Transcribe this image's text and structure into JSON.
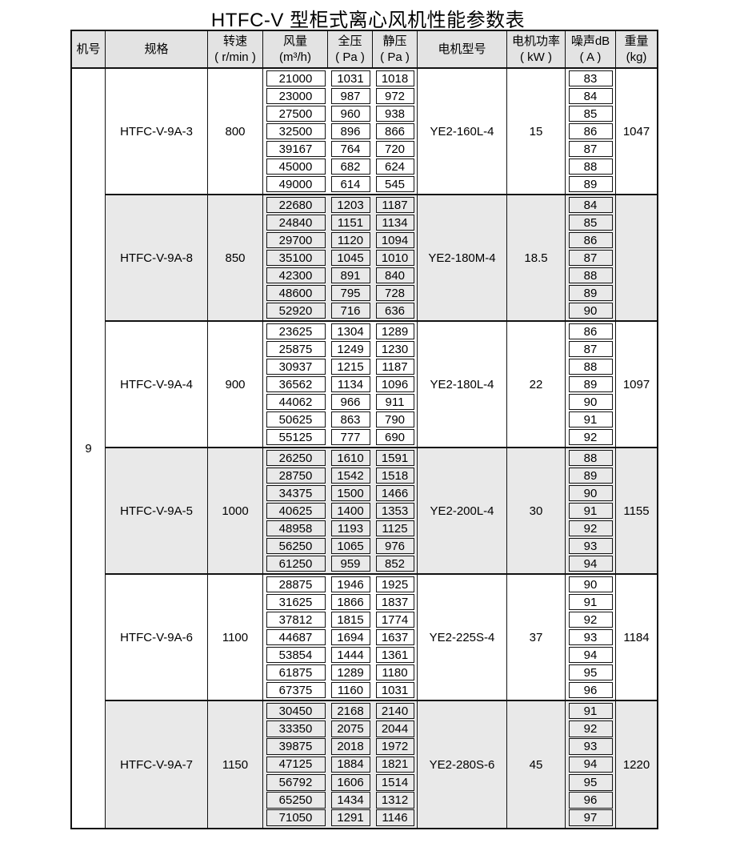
{
  "title": "HTFC-V 型柜式离心风机性能参数表",
  "colors": {
    "border": "#121212",
    "header_bg": "#e3e3e3",
    "shaded_row_bg": "#e9e9e9",
    "text": "#000000"
  },
  "table": {
    "machine_no": "9",
    "columns": [
      {
        "key": "machine_no",
        "label": "机号",
        "unit": ""
      },
      {
        "key": "spec",
        "label": "规格",
        "unit": ""
      },
      {
        "key": "speed",
        "label": "转速",
        "unit": "( r/min )"
      },
      {
        "key": "airflow",
        "label": "风量",
        "unit": "(m³/h)"
      },
      {
        "key": "total_pressure",
        "label": "全压",
        "unit": "( Pa )"
      },
      {
        "key": "static_pressure",
        "label": "静压",
        "unit": "( Pa )"
      },
      {
        "key": "motor_model",
        "label": "电机型号",
        "unit": ""
      },
      {
        "key": "motor_power",
        "label": "电机功率",
        "unit": "( kW )"
      },
      {
        "key": "noise",
        "label": "噪声dB",
        "unit": "( A )"
      },
      {
        "key": "weight",
        "label": "重量",
        "unit": "(kg)"
      }
    ],
    "groups": [
      {
        "spec": "HTFC-V-9A-3",
        "speed": "800",
        "motor_model": "YE2-160L-4",
        "motor_power": "15",
        "weight": "1047",
        "shaded": false,
        "rows": [
          {
            "airflow": "21000",
            "total_pressure": "1031",
            "static_pressure": "1018",
            "noise": "83"
          },
          {
            "airflow": "23000",
            "total_pressure": "987",
            "static_pressure": "972",
            "noise": "84"
          },
          {
            "airflow": "27500",
            "total_pressure": "960",
            "static_pressure": "938",
            "noise": "85"
          },
          {
            "airflow": "32500",
            "total_pressure": "896",
            "static_pressure": "866",
            "noise": "86"
          },
          {
            "airflow": "39167",
            "total_pressure": "764",
            "static_pressure": "720",
            "noise": "87"
          },
          {
            "airflow": "45000",
            "total_pressure": "682",
            "static_pressure": "624",
            "noise": "88"
          },
          {
            "airflow": "49000",
            "total_pressure": "614",
            "static_pressure": "545",
            "noise": "89"
          }
        ]
      },
      {
        "spec": "HTFC-V-9A-8",
        "speed": "850",
        "motor_model": "YE2-180M-4",
        "motor_power": "18.5",
        "weight": "",
        "shaded": true,
        "rows": [
          {
            "airflow": "22680",
            "total_pressure": "1203",
            "static_pressure": "1187",
            "noise": "84"
          },
          {
            "airflow": "24840",
            "total_pressure": "1151",
            "static_pressure": "1134",
            "noise": "85"
          },
          {
            "airflow": "29700",
            "total_pressure": "1120",
            "static_pressure": "1094",
            "noise": "86"
          },
          {
            "airflow": "35100",
            "total_pressure": "1045",
            "static_pressure": "1010",
            "noise": "87"
          },
          {
            "airflow": "42300",
            "total_pressure": "891",
            "static_pressure": "840",
            "noise": "88"
          },
          {
            "airflow": "48600",
            "total_pressure": "795",
            "static_pressure": "728",
            "noise": "89"
          },
          {
            "airflow": "52920",
            "total_pressure": "716",
            "static_pressure": "636",
            "noise": "90"
          }
        ]
      },
      {
        "spec": "HTFC-V-9A-4",
        "speed": "900",
        "motor_model": "YE2-180L-4",
        "motor_power": "22",
        "weight": "1097",
        "shaded": false,
        "rows": [
          {
            "airflow": "23625",
            "total_pressure": "1304",
            "static_pressure": "1289",
            "noise": "86"
          },
          {
            "airflow": "25875",
            "total_pressure": "1249",
            "static_pressure": "1230",
            "noise": "87"
          },
          {
            "airflow": "30937",
            "total_pressure": "1215",
            "static_pressure": "1187",
            "noise": "88"
          },
          {
            "airflow": "36562",
            "total_pressure": "1134",
            "static_pressure": "1096",
            "noise": "89"
          },
          {
            "airflow": "44062",
            "total_pressure": "966",
            "static_pressure": "911",
            "noise": "90"
          },
          {
            "airflow": "50625",
            "total_pressure": "863",
            "static_pressure": "790",
            "noise": "91"
          },
          {
            "airflow": "55125",
            "total_pressure": "777",
            "static_pressure": "690",
            "noise": "92"
          }
        ]
      },
      {
        "spec": "HTFC-V-9A-5",
        "speed": "1000",
        "motor_model": "YE2-200L-4",
        "motor_power": "30",
        "weight": "1155",
        "shaded": true,
        "rows": [
          {
            "airflow": "26250",
            "total_pressure": "1610",
            "static_pressure": "1591",
            "noise": "88"
          },
          {
            "airflow": "28750",
            "total_pressure": "1542",
            "static_pressure": "1518",
            "noise": "89"
          },
          {
            "airflow": "34375",
            "total_pressure": "1500",
            "static_pressure": "1466",
            "noise": "90"
          },
          {
            "airflow": "40625",
            "total_pressure": "1400",
            "static_pressure": "1353",
            "noise": "91"
          },
          {
            "airflow": "48958",
            "total_pressure": "1193",
            "static_pressure": "1125",
            "noise": "92"
          },
          {
            "airflow": "56250",
            "total_pressure": "1065",
            "static_pressure": "976",
            "noise": "93"
          },
          {
            "airflow": "61250",
            "total_pressure": "959",
            "static_pressure": "852",
            "noise": "94"
          }
        ]
      },
      {
        "spec": "HTFC-V-9A-6",
        "speed": "1100",
        "motor_model": "YE2-225S-4",
        "motor_power": "37",
        "weight": "1184",
        "shaded": false,
        "rows": [
          {
            "airflow": "28875",
            "total_pressure": "1946",
            "static_pressure": "1925",
            "noise": "90"
          },
          {
            "airflow": "31625",
            "total_pressure": "1866",
            "static_pressure": "1837",
            "noise": "91"
          },
          {
            "airflow": "37812",
            "total_pressure": "1815",
            "static_pressure": "1774",
            "noise": "92"
          },
          {
            "airflow": "44687",
            "total_pressure": "1694",
            "static_pressure": "1637",
            "noise": "93"
          },
          {
            "airflow": "53854",
            "total_pressure": "1444",
            "static_pressure": "1361",
            "noise": "94"
          },
          {
            "airflow": "61875",
            "total_pressure": "1289",
            "static_pressure": "1180",
            "noise": "95"
          },
          {
            "airflow": "67375",
            "total_pressure": "1160",
            "static_pressure": "1031",
            "noise": "96"
          }
        ]
      },
      {
        "spec": "HTFC-V-9A-7",
        "speed": "1150",
        "motor_model": "YE2-280S-6",
        "motor_power": "45",
        "weight": "1220",
        "shaded": true,
        "rows": [
          {
            "airflow": "30450",
            "total_pressure": "2168",
            "static_pressure": "2140",
            "noise": "91"
          },
          {
            "airflow": "33350",
            "total_pressure": "2075",
            "static_pressure": "2044",
            "noise": "92"
          },
          {
            "airflow": "39875",
            "total_pressure": "2018",
            "static_pressure": "1972",
            "noise": "93"
          },
          {
            "airflow": "47125",
            "total_pressure": "1884",
            "static_pressure": "1821",
            "noise": "94"
          },
          {
            "airflow": "56792",
            "total_pressure": "1606",
            "static_pressure": "1514",
            "noise": "95"
          },
          {
            "airflow": "65250",
            "total_pressure": "1434",
            "static_pressure": "1312",
            "noise": "96"
          },
          {
            "airflow": "71050",
            "total_pressure": "1291",
            "static_pressure": "1146",
            "noise": "97"
          }
        ]
      }
    ]
  }
}
